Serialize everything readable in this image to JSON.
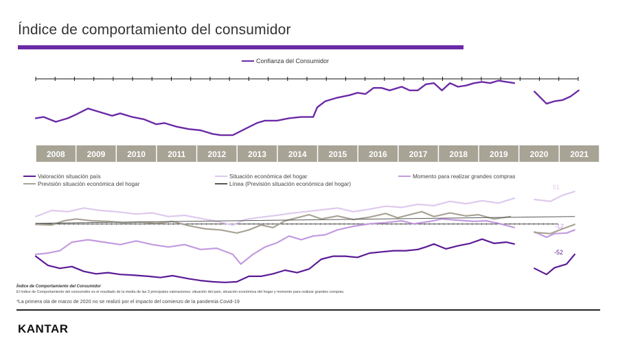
{
  "title": "Índice de comportamiento del consumidor",
  "colors": {
    "accent": "#6b2aa6",
    "confianza": "#6b2aa6",
    "valoracion": "#5a1a96",
    "situacion_hogar": "#ddc9ee",
    "momento_compras": "#c39ae0",
    "prevision_hogar": "#a7a395",
    "linea": "#555555",
    "year_band": "#a7a395"
  },
  "legend_top": {
    "confianza": "Confianza del Consumidor"
  },
  "legend_bottom": {
    "valoracion": "Valoración situación país",
    "situacion_hogar": "Situación económica del hogar",
    "momento_compras": "Momento para realizar grandes compras",
    "prevision_hogar": "Previsión situación económica del hogar",
    "linea": "Línea (Previsión situación económica del hogar)"
  },
  "end_labels": {
    "situacion_hogar": "51",
    "momento_compras": "-12",
    "valoracion": "-52"
  },
  "notes": {
    "title": "Índice de Comportamiento del Consumidor",
    "body": "El índice de Comportamiento del consumidor es el resultado de la media de las 3 principales valoraciones: situación del país, situación económica del hogar y momento para realizar grandes compras.",
    "footnote": "*La primera ola de marzo de 2020 no se realizó por el impacto del comienzo de la pandemia Covid-19"
  },
  "logo": "KANTAR",
  "chart_data": [
    {
      "type": "line",
      "title": "",
      "x_years": [
        "2008",
        "2009",
        "2010",
        "2011",
        "2012",
        "2013",
        "2014",
        "2015",
        "2016",
        "2017",
        "2018",
        "2019",
        "2020",
        "2021"
      ],
      "xlim": [
        2008,
        2022
      ],
      "ylim": [
        30,
        115
      ],
      "series": [
        {
          "name": "Confianza del Consumidor",
          "points": [
            [
              2008.0,
              57
            ],
            [
              2008.2,
              58
            ],
            [
              2008.5,
              54
            ],
            [
              2008.8,
              57
            ],
            [
              2009.0,
              60
            ],
            [
              2009.3,
              65
            ],
            [
              2009.6,
              62
            ],
            [
              2009.9,
              59
            ],
            [
              2010.1,
              61
            ],
            [
              2010.4,
              58
            ],
            [
              2010.7,
              56
            ],
            [
              2011.0,
              52
            ],
            [
              2011.2,
              53
            ],
            [
              2011.5,
              50
            ],
            [
              2011.8,
              48
            ],
            [
              2012.1,
              47
            ],
            [
              2012.4,
              44
            ],
            [
              2012.6,
              43
            ],
            [
              2012.9,
              43
            ],
            [
              2013.2,
              48
            ],
            [
              2013.5,
              53
            ],
            [
              2013.7,
              55
            ],
            [
              2014.0,
              55
            ],
            [
              2014.3,
              57
            ],
            [
              2014.6,
              58
            ],
            [
              2014.9,
              58
            ],
            [
              2015.0,
              66
            ],
            [
              2015.2,
              71
            ],
            [
              2015.5,
              74
            ],
            [
              2015.8,
              76
            ],
            [
              2016.0,
              78
            ],
            [
              2016.2,
              77
            ],
            [
              2016.4,
              82
            ],
            [
              2016.6,
              82
            ],
            [
              2016.8,
              80
            ],
            [
              2017.1,
              83
            ],
            [
              2017.3,
              80
            ],
            [
              2017.5,
              80
            ],
            [
              2017.7,
              85
            ],
            [
              2017.9,
              86
            ],
            [
              2018.1,
              80
            ],
            [
              2018.3,
              86
            ],
            [
              2018.5,
              83
            ],
            [
              2018.7,
              84
            ],
            [
              2018.9,
              86
            ],
            [
              2019.1,
              87
            ],
            [
              2019.3,
              86
            ],
            [
              2019.5,
              88
            ],
            [
              2019.9,
              86
            ],
            [
              2020.4,
              79
            ],
            [
              2020.7,
              69
            ],
            [
              2020.9,
              71
            ],
            [
              2021.1,
              72
            ],
            [
              2021.3,
              75
            ],
            [
              2021.5,
              80
            ]
          ]
        }
      ]
    },
    {
      "type": "line",
      "title": "",
      "xlim": [
        2008,
        2022
      ],
      "ylim": [
        -105,
        75
      ],
      "series": [
        {
          "name": "Valoración situación país",
          "points": [
            [
              2008.0,
              -55
            ],
            [
              2008.3,
              -70
            ],
            [
              2008.6,
              -75
            ],
            [
              2008.9,
              -72
            ],
            [
              2009.2,
              -80
            ],
            [
              2009.5,
              -84
            ],
            [
              2009.8,
              -82
            ],
            [
              2010.1,
              -85
            ],
            [
              2010.4,
              -86
            ],
            [
              2010.8,
              -88
            ],
            [
              2011.1,
              -90
            ],
            [
              2011.4,
              -87
            ],
            [
              2011.8,
              -92
            ],
            [
              2012.1,
              -95
            ],
            [
              2012.4,
              -97
            ],
            [
              2012.7,
              -98
            ],
            [
              2013.0,
              -97
            ],
            [
              2013.3,
              -88
            ],
            [
              2013.6,
              -88
            ],
            [
              2013.9,
              -84
            ],
            [
              2014.2,
              -78
            ],
            [
              2014.5,
              -82
            ],
            [
              2014.8,
              -76
            ],
            [
              2015.1,
              -60
            ],
            [
              2015.4,
              -55
            ],
            [
              2015.7,
              -55
            ],
            [
              2016.0,
              -57
            ],
            [
              2016.3,
              -50
            ],
            [
              2016.6,
              -48
            ],
            [
              2016.9,
              -46
            ],
            [
              2017.2,
              -46
            ],
            [
              2017.5,
              -44
            ],
            [
              2017.7,
              -40
            ],
            [
              2017.9,
              -35
            ],
            [
              2018.2,
              -43
            ],
            [
              2018.5,
              -38
            ],
            [
              2018.8,
              -34
            ],
            [
              2019.1,
              -27
            ],
            [
              2019.4,
              -34
            ],
            [
              2019.7,
              -32
            ],
            [
              2019.9,
              -35
            ],
            [
              2020.4,
              -75
            ],
            [
              2020.7,
              -85
            ],
            [
              2020.9,
              -74
            ],
            [
              2021.2,
              -68
            ],
            [
              2021.4,
              -52
            ]
          ]
        },
        {
          "name": "Situación económica del hogar",
          "points": [
            [
              2008.0,
              10
            ],
            [
              2008.4,
              20
            ],
            [
              2008.8,
              18
            ],
            [
              2009.2,
              24
            ],
            [
              2009.6,
              20
            ],
            [
              2010.0,
              18
            ],
            [
              2010.5,
              14
            ],
            [
              2010.9,
              16
            ],
            [
              2011.3,
              10
            ],
            [
              2011.7,
              12
            ],
            [
              2012.1,
              7
            ],
            [
              2012.5,
              2
            ],
            [
              2012.9,
              -4
            ],
            [
              2013.2,
              5
            ],
            [
              2013.6,
              9
            ],
            [
              2014.0,
              12
            ],
            [
              2014.3,
              15
            ],
            [
              2014.7,
              18
            ],
            [
              2015.1,
              21
            ],
            [
              2015.5,
              24
            ],
            [
              2015.9,
              18
            ],
            [
              2016.3,
              22
            ],
            [
              2016.7,
              27
            ],
            [
              2017.1,
              25
            ],
            [
              2017.5,
              30
            ],
            [
              2017.9,
              28
            ],
            [
              2018.3,
              35
            ],
            [
              2018.7,
              31
            ],
            [
              2019.1,
              36
            ],
            [
              2019.5,
              32
            ],
            [
              2019.9,
              40
            ],
            [
              2020.4,
              38
            ],
            [
              2020.8,
              35
            ],
            [
              2021.1,
              45
            ],
            [
              2021.4,
              51
            ]
          ]
        },
        {
          "name": "Momento para realizar grandes compras",
          "points": [
            [
              2008.0,
              -52
            ],
            [
              2008.3,
              -50
            ],
            [
              2008.6,
              -46
            ],
            [
              2008.9,
              -32
            ],
            [
              2009.3,
              -28
            ],
            [
              2009.7,
              -32
            ],
            [
              2010.1,
              -36
            ],
            [
              2010.5,
              -30
            ],
            [
              2010.9,
              -36
            ],
            [
              2011.3,
              -40
            ],
            [
              2011.7,
              -36
            ],
            [
              2012.1,
              -44
            ],
            [
              2012.5,
              -42
            ],
            [
              2012.9,
              -52
            ],
            [
              2013.1,
              -68
            ],
            [
              2013.4,
              -52
            ],
            [
              2013.7,
              -40
            ],
            [
              2014.0,
              -33
            ],
            [
              2014.3,
              -22
            ],
            [
              2014.6,
              -28
            ],
            [
              2014.9,
              -22
            ],
            [
              2015.2,
              -20
            ],
            [
              2015.5,
              -12
            ],
            [
              2015.9,
              -6
            ],
            [
              2016.3,
              -2
            ],
            [
              2016.7,
              0
            ],
            [
              2017.1,
              3
            ],
            [
              2017.4,
              -2
            ],
            [
              2017.8,
              2
            ],
            [
              2018.1,
              6
            ],
            [
              2018.5,
              4
            ],
            [
              2018.9,
              2
            ],
            [
              2019.2,
              3
            ],
            [
              2019.5,
              -1
            ],
            [
              2019.9,
              -8
            ],
            [
              2020.4,
              -15
            ],
            [
              2020.7,
              -24
            ],
            [
              2020.9,
              -18
            ],
            [
              2021.2,
              -17
            ],
            [
              2021.4,
              -12
            ]
          ]
        },
        {
          "name": "Previsión situación económica del hogar",
          "points": [
            [
              2008.0,
              -3
            ],
            [
              2008.4,
              -4
            ],
            [
              2008.7,
              3
            ],
            [
              2009.0,
              6
            ],
            [
              2009.4,
              3
            ],
            [
              2009.8,
              2
            ],
            [
              2010.2,
              0
            ],
            [
              2010.6,
              1
            ],
            [
              2011.0,
              -1
            ],
            [
              2011.4,
              2
            ],
            [
              2011.8,
              -5
            ],
            [
              2012.2,
              -10
            ],
            [
              2012.6,
              -12
            ],
            [
              2013.0,
              -17
            ],
            [
              2013.3,
              -12
            ],
            [
              2013.6,
              -4
            ],
            [
              2013.9,
              -8
            ],
            [
              2014.2,
              3
            ],
            [
              2014.5,
              8
            ],
            [
              2014.8,
              13
            ],
            [
              2015.1,
              6
            ],
            [
              2015.5,
              11
            ],
            [
              2015.9,
              5
            ],
            [
              2016.3,
              9
            ],
            [
              2016.7,
              15
            ],
            [
              2017.0,
              8
            ],
            [
              2017.3,
              13
            ],
            [
              2017.6,
              18
            ],
            [
              2017.9,
              10
            ],
            [
              2018.3,
              16
            ],
            [
              2018.7,
              11
            ],
            [
              2019.0,
              13
            ],
            [
              2019.4,
              6
            ],
            [
              2019.8,
              10
            ],
            [
              2020.4,
              -16
            ],
            [
              2020.8,
              -18
            ],
            [
              2021.1,
              -10
            ],
            [
              2021.4,
              -3
            ]
          ]
        },
        {
          "name": "Línea (Previsión situación económica del hogar)",
          "points": [
            [
              2008.0,
              -1
            ],
            [
              2020.0,
              9
            ],
            [
              2021.4,
              10
            ]
          ]
        }
      ]
    }
  ]
}
